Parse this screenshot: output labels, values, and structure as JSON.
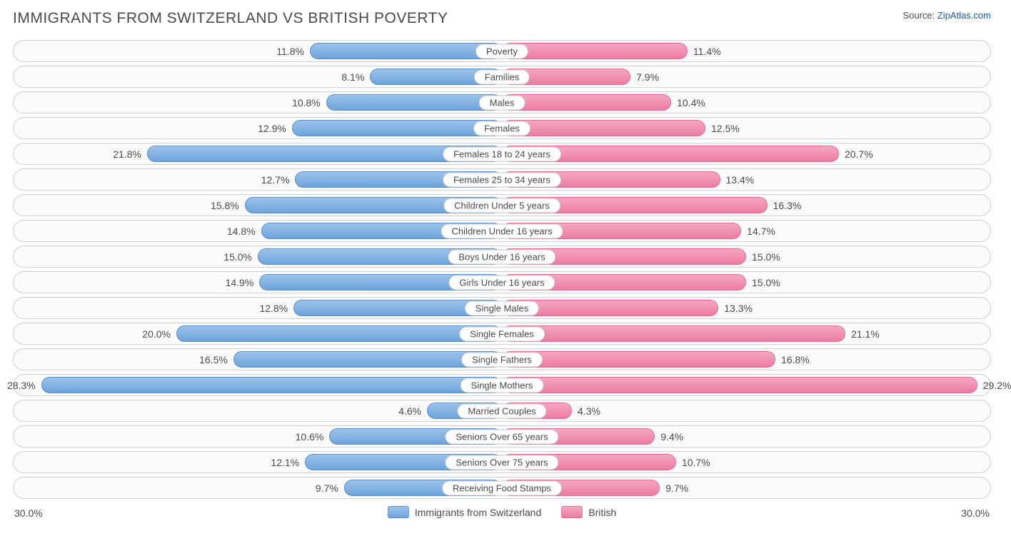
{
  "title": "IMMIGRANTS FROM SWITZERLAND VS BRITISH POVERTY",
  "source_prefix": "Source: ",
  "source_link": "ZipAtlas.com",
  "chart": {
    "type": "diverging-bar",
    "max": 30.0,
    "axis_left_label": "30.0%",
    "axis_right_label": "30.0%",
    "series_a": {
      "label": "Immigrants from Switzerland",
      "color": "#7fb0e0",
      "border": "#5a8fc9"
    },
    "series_b": {
      "label": "British",
      "color": "#f08fb0",
      "border": "#e46b93"
    },
    "background_color": "#ffffff",
    "row_border_color": "#d0d0d0",
    "label_fontsize": 14,
    "categories": [
      {
        "name": "Poverty",
        "a": 11.8,
        "b": 11.4
      },
      {
        "name": "Families",
        "a": 8.1,
        "b": 7.9
      },
      {
        "name": "Males",
        "a": 10.8,
        "b": 10.4
      },
      {
        "name": "Females",
        "a": 12.9,
        "b": 12.5
      },
      {
        "name": "Females 18 to 24 years",
        "a": 21.8,
        "b": 20.7
      },
      {
        "name": "Females 25 to 34 years",
        "a": 12.7,
        "b": 13.4
      },
      {
        "name": "Children Under 5 years",
        "a": 15.8,
        "b": 16.3
      },
      {
        "name": "Children Under 16 years",
        "a": 14.8,
        "b": 14.7
      },
      {
        "name": "Boys Under 16 years",
        "a": 15.0,
        "b": 15.0
      },
      {
        "name": "Girls Under 16 years",
        "a": 14.9,
        "b": 15.0
      },
      {
        "name": "Single Males",
        "a": 12.8,
        "b": 13.3
      },
      {
        "name": "Single Females",
        "a": 20.0,
        "b": 21.1
      },
      {
        "name": "Single Fathers",
        "a": 16.5,
        "b": 16.8
      },
      {
        "name": "Single Mothers",
        "a": 28.3,
        "b": 29.2
      },
      {
        "name": "Married Couples",
        "a": 4.6,
        "b": 4.3
      },
      {
        "name": "Seniors Over 65 years",
        "a": 10.6,
        "b": 9.4
      },
      {
        "name": "Seniors Over 75 years",
        "a": 12.1,
        "b": 10.7
      },
      {
        "name": "Receiving Food Stamps",
        "a": 9.7,
        "b": 9.7
      }
    ]
  }
}
